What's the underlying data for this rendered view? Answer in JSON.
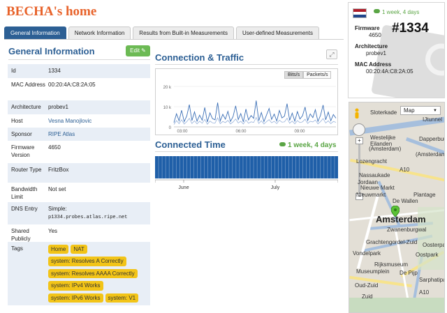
{
  "page": {
    "title": "BECHA's home"
  },
  "tabs": [
    {
      "label": "General Information",
      "active": true
    },
    {
      "label": "Network Information",
      "active": false
    },
    {
      "label": "Results from Built-in Measurements",
      "active": false
    },
    {
      "label": "User-defined Measurements",
      "active": false
    }
  ],
  "general": {
    "title": "General Information",
    "edit_label": "Edit",
    "rows": [
      {
        "key": "Id",
        "value": "1334"
      },
      {
        "key": "MAC Address",
        "value": "00:20:4A:C8:2A:05"
      },
      {
        "key": "Architecture",
        "value": "probev1"
      },
      {
        "key": "Host",
        "value": "Vesna Manojlovic"
      },
      {
        "key": "Sponsor",
        "value": "RIPE Atlas"
      },
      {
        "key": "Firmware Version",
        "value": "4650"
      },
      {
        "key": "Router Type",
        "value": "FritzBox"
      },
      {
        "key": "Bandwidth Limit",
        "value": "Not set"
      },
      {
        "key": "DNS Entry",
        "value": "Simple:",
        "mono": "p1334.probes.atlas.ripe.net"
      },
      {
        "key": "Shared Publicly",
        "value": "Yes"
      },
      {
        "key": "Tags"
      }
    ],
    "tags": [
      "Home",
      "NAT",
      "system: Resolves A Correctly",
      "system: Resolves AAAA Correctly",
      "system: IPv4 Works",
      "system: IPv6 Works",
      "system: V1"
    ]
  },
  "traffic": {
    "title": "Connection & Traffic",
    "toggle": [
      "Bits/s",
      "Packets/s"
    ],
    "toggle_selected": "Bits/s",
    "colors": {
      "in": "#3b6fb6",
      "out": "#8aa8d6"
    }
  },
  "connected": {
    "title": "Connected Time",
    "uptime": "1 week, 4 days",
    "months": [
      "June",
      "July"
    ],
    "color": "#1f5fa8"
  },
  "chart_data": {
    "type": "line",
    "x_ticks": [
      "03:00",
      "06:00",
      "09:00"
    ],
    "y_ticks": [
      "20 k",
      "10 k",
      "0"
    ],
    "ylim": [
      0,
      20000
    ],
    "series": [
      {
        "values": [
          2100,
          6500,
          3000,
          8200,
          2600,
          5400,
          11000,
          3100,
          7400,
          2800,
          5800,
          3300,
          9600,
          2400,
          6900,
          4100,
          3500,
          12000,
          2900,
          6200,
          3800,
          7700,
          2700,
          5100,
          10400,
          3600,
          6600,
          2500,
          8800,
          3400,
          5600,
          4200,
          13000,
          3000,
          7100,
          2600,
          5900,
          9100,
          3700,
          6300,
          2900,
          8100,
          4400,
          5300,
          11500,
          3200,
          6800,
          2800,
          7600,
          3900,
          5500,
          9800,
          3100,
          6400,
          4600,
          8500,
          2700,
          5700,
          10800,
          3500,
          7300,
          3000,
          6100,
          4300
        ]
      },
      {
        "values": [
          1200,
          3100,
          1600,
          3500,
          1400,
          2600,
          4200,
          1700,
          3000,
          1500,
          2800,
          1800,
          3700,
          1300,
          2900,
          2000,
          1900,
          4500,
          1600,
          2700,
          2100,
          3200,
          1500,
          2400,
          3900,
          1900,
          2800,
          1400,
          3400,
          1800,
          2500,
          2200,
          4700,
          1700,
          3000,
          1400,
          2600,
          3600,
          2000,
          2800,
          1600,
          3300,
          2300,
          2500,
          4300,
          1800,
          2900,
          1500,
          3100,
          2100,
          2500,
          3800,
          1700,
          2800,
          2400,
          3400,
          1500,
          2600,
          4100,
          1900,
          3000,
          1600,
          2700,
          2200
        ]
      }
    ]
  },
  "side": {
    "uptime": "1 week, 4 days",
    "probe_id": "#1334",
    "firmware_label": "Firmware",
    "firmware_value": "4650",
    "arch_label": "Architecture",
    "arch_value": "probev1",
    "mac_label": "MAC Address",
    "mac_value": "00:20:4A:C8:2A:05",
    "flag_colors": [
      "#ae1c28",
      "#ffffff",
      "#21468b"
    ]
  },
  "map": {
    "type_label": "Map",
    "zoom_in": "+",
    "zoom_out": "−",
    "labels": {
      "westelijke": "Westelijke",
      "eilanden": "Eilanden",
      "oost": "(Amsterdam-",
      "centrum": "(Amsterdam)",
      "jordaan": "Jordaan",
      "nieuwe": "Nieuwe Markt",
      "wallen": "De Wallen",
      "amsterdam": "Amsterdam",
      "zwanenburg": "Zwanenburgwal",
      "gracht": "Grachtengordel-Zuid",
      "vondel": "Vondelpark",
      "rijks": "Rijksmuseum",
      "depijp": "De Pijp",
      "oudzuid": "Oud-Zuid",
      "zuid": "Zuid",
      "roads": [
        "A10",
        "A10"
      ],
      "lozengracht": "Lozengracht",
      "maastraat": "Sarphatipark",
      "lange": "Oostpark",
      "nassau": "Nassaukade",
      "plantage": "Plantage",
      "nmarkt": "Nieuwmarkt",
      "museum": "Museumplein",
      "dekken": "Dapperbuurt",
      "ijtunnel": "IJtunnel",
      "oosterpark": "Oosterpark",
      "sloterkade": "Sloterkade"
    }
  }
}
